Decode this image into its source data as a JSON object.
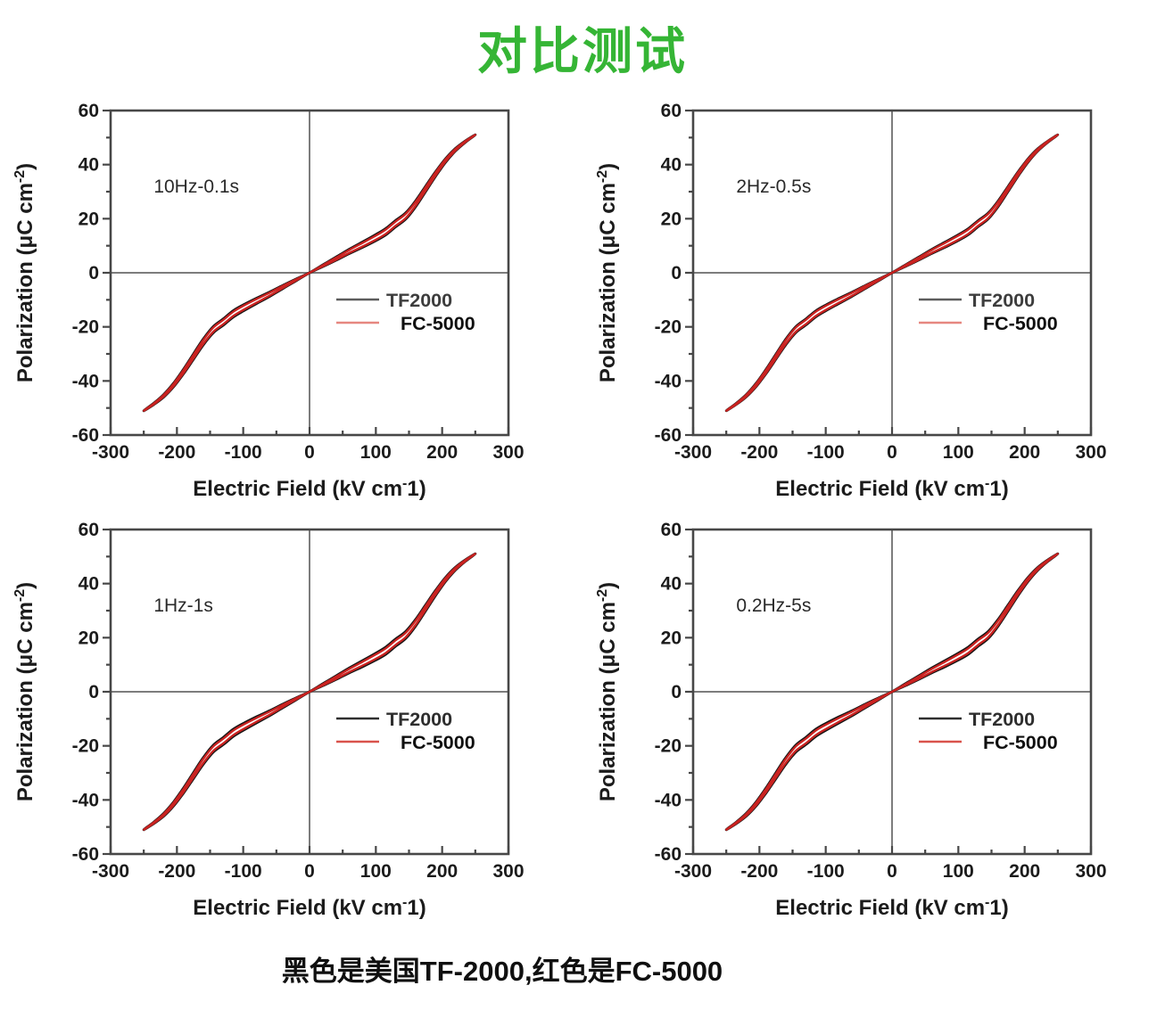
{
  "title": "对比测试",
  "title_color": "#35b535",
  "caption": "黑色是美国TF-2000,红色是FC-5000",
  "colors": {
    "frame": "#474747",
    "zero_line": "#7d7d7d",
    "tick_text": "#1b1b1b",
    "axis_label_text": "#1b1b1b",
    "condition_label_text": "#2a2a2a"
  },
  "axes": {
    "xlabel_parts": {
      "pre": "Electric Field (kV cm",
      "sup": "-",
      "post": "1)"
    },
    "ylabel_parts": {
      "pre": "Polarization (μC cm",
      "sup": "-2",
      "post": ")"
    },
    "x_ticks": [
      -300,
      -200,
      -100,
      0,
      100,
      200,
      300
    ],
    "y_ticks": [
      60,
      40,
      20,
      0,
      -20,
      -40,
      -60
    ],
    "x_minor_ticks": [
      -250,
      -150,
      -50,
      50,
      150,
      250
    ],
    "y_minor_ticks": [
      -50,
      -30,
      -10,
      10,
      30,
      50
    ],
    "xlim": [
      -300,
      300
    ],
    "ylim": [
      -60,
      60
    ]
  },
  "chart_data": [
    {
      "type": "line",
      "title": "10Hz-0.1s",
      "xlabel": "Electric Field (kV cm⁻1)",
      "ylabel": "Polarization (μC cm⁻²)",
      "xlim": [
        -300,
        300
      ],
      "ylim": [
        -60,
        60
      ],
      "x_ticks": [
        -300,
        -200,
        -100,
        0,
        100,
        200,
        300
      ],
      "y_ticks": [
        -60,
        -40,
        -20,
        0,
        20,
        40,
        60
      ],
      "grid": false,
      "legend_position": "lower-right",
      "x": [
        -250,
        -235,
        -220,
        -205,
        -190,
        -175,
        -160,
        -145,
        -130,
        -115,
        -100,
        -80,
        -60,
        -40,
        -20,
        0,
        20,
        40,
        60,
        80,
        100,
        115,
        130,
        145,
        160,
        175,
        190,
        205,
        220,
        235,
        250
      ],
      "y": [
        -51,
        -48.5,
        -45.5,
        -41.5,
        -36.5,
        -31,
        -25.5,
        -21,
        -18.2,
        -15.2,
        -13,
        -10.4,
        -7.9,
        -5.2,
        -2.6,
        0,
        2.6,
        5.2,
        7.9,
        10.4,
        13,
        15.2,
        18.2,
        21,
        25.5,
        31,
        36.5,
        41.5,
        45.5,
        48.5,
        51
      ],
      "series": [
        {
          "name": "TF2000",
          "color": "#161616",
          "legend_line_color": "#5c5c5c",
          "label_color": "#3d3d3d",
          "loop_half_width": 1.15,
          "stroke_width": 3.1
        },
        {
          "name": "FC-5000",
          "color": "#c92220",
          "legend_line_color": "#e68780",
          "label_color": "#101010",
          "loop_half_width": 0.8,
          "stroke_width": 2.4
        }
      ]
    },
    {
      "type": "line",
      "title": "2Hz-0.5s",
      "xlabel": "Electric Field (kV cm⁻1)",
      "ylabel": "Polarization (μC cm⁻²)",
      "xlim": [
        -300,
        300
      ],
      "ylim": [
        -60,
        60
      ],
      "x_ticks": [
        -300,
        -200,
        -100,
        0,
        100,
        200,
        300
      ],
      "y_ticks": [
        -60,
        -40,
        -20,
        0,
        20,
        40,
        60
      ],
      "grid": false,
      "legend_position": "lower-right",
      "x": [
        -250,
        -235,
        -220,
        -205,
        -190,
        -175,
        -160,
        -145,
        -130,
        -115,
        -100,
        -80,
        -60,
        -40,
        -20,
        0,
        20,
        40,
        60,
        80,
        100,
        115,
        130,
        145,
        160,
        175,
        190,
        205,
        220,
        235,
        250
      ],
      "y": [
        -51,
        -48.5,
        -45.5,
        -41.5,
        -36.5,
        -31,
        -25.5,
        -21,
        -18.2,
        -15.2,
        -13,
        -10.4,
        -7.9,
        -5.2,
        -2.6,
        0,
        2.6,
        5.2,
        7.9,
        10.4,
        13,
        15.2,
        18.2,
        21,
        25.5,
        31,
        36.5,
        41.5,
        45.5,
        48.5,
        51
      ],
      "series": [
        {
          "name": "TF2000",
          "color": "#161616",
          "legend_line_color": "#5c5c5c",
          "label_color": "#3d3d3d",
          "loop_half_width": 1.1,
          "stroke_width": 3.0
        },
        {
          "name": "FC-5000",
          "color": "#c92220",
          "legend_line_color": "#e68780",
          "label_color": "#101010",
          "loop_half_width": 0.8,
          "stroke_width": 2.4
        }
      ]
    },
    {
      "type": "line",
      "title": "1Hz-1s",
      "xlabel": "Electric Field (kV cm⁻1)",
      "ylabel": "Polarization (μC cm⁻²)",
      "xlim": [
        -300,
        300
      ],
      "ylim": [
        -60,
        60
      ],
      "x_ticks": [
        -300,
        -200,
        -100,
        0,
        100,
        200,
        300
      ],
      "y_ticks": [
        -60,
        -40,
        -20,
        0,
        20,
        40,
        60
      ],
      "grid": false,
      "legend_position": "lower-right",
      "x": [
        -250,
        -235,
        -220,
        -205,
        -190,
        -175,
        -160,
        -145,
        -130,
        -115,
        -100,
        -80,
        -60,
        -40,
        -20,
        0,
        20,
        40,
        60,
        80,
        100,
        115,
        130,
        145,
        160,
        175,
        190,
        205,
        220,
        235,
        250
      ],
      "y": [
        -51,
        -48.5,
        -45.5,
        -41.5,
        -36.5,
        -31,
        -25.5,
        -21,
        -18.2,
        -15.2,
        -13,
        -10.4,
        -7.9,
        -5.2,
        -2.6,
        0,
        2.6,
        5.2,
        7.9,
        10.4,
        13,
        15.2,
        18.2,
        21,
        25.5,
        31,
        36.5,
        41.5,
        45.5,
        48.5,
        51
      ],
      "series": [
        {
          "name": "TF2000",
          "color": "#161616",
          "legend_line_color": "#2f2f2f",
          "label_color": "#2e2e2e",
          "loop_half_width": 1.3,
          "stroke_width": 3.1
        },
        {
          "name": "FC-5000",
          "color": "#c92220",
          "legend_line_color": "#d9534c",
          "label_color": "#101010",
          "loop_half_width": 0.85,
          "stroke_width": 2.4
        }
      ]
    },
    {
      "type": "line",
      "title": "0.2Hz-5s",
      "xlabel": "Electric Field (kV cm⁻1)",
      "ylabel": "Polarization (μC cm⁻²)",
      "xlim": [
        -300,
        300
      ],
      "ylim": [
        -60,
        60
      ],
      "x_ticks": [
        -300,
        -200,
        -100,
        0,
        100,
        200,
        300
      ],
      "y_ticks": [
        -60,
        -40,
        -20,
        0,
        20,
        40,
        60
      ],
      "grid": false,
      "legend_position": "lower-right",
      "x": [
        -250,
        -235,
        -220,
        -205,
        -190,
        -175,
        -160,
        -145,
        -130,
        -115,
        -100,
        -80,
        -60,
        -40,
        -20,
        0,
        20,
        40,
        60,
        80,
        100,
        115,
        130,
        145,
        160,
        175,
        190,
        205,
        220,
        235,
        250
      ],
      "y": [
        -51,
        -48.5,
        -45.5,
        -41.5,
        -36.5,
        -31,
        -25.5,
        -21,
        -18.2,
        -15.2,
        -13,
        -10.4,
        -7.9,
        -5.2,
        -2.6,
        0,
        2.6,
        5.2,
        7.9,
        10.4,
        13,
        15.2,
        18.2,
        21,
        25.5,
        31,
        36.5,
        41.5,
        45.5,
        48.5,
        51
      ],
      "series": [
        {
          "name": "TF2000",
          "color": "#161616",
          "legend_line_color": "#2f2f2f",
          "label_color": "#2e2e2e",
          "loop_half_width": 1.3,
          "stroke_width": 3.1
        },
        {
          "name": "FC-5000",
          "color": "#c92220",
          "legend_line_color": "#d9534c",
          "label_color": "#101010",
          "loop_half_width": 0.85,
          "stroke_width": 2.4
        }
      ]
    }
  ]
}
